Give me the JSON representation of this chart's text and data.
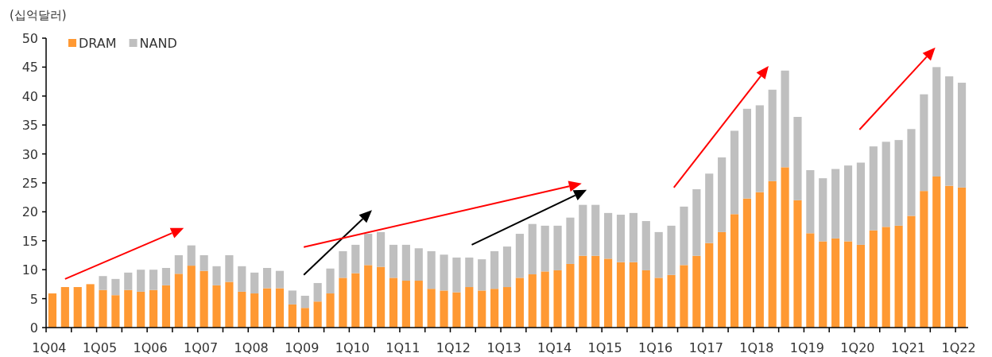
{
  "chart_data": {
    "type": "bar",
    "stacked": true,
    "ylabel": "(십억달러)",
    "legend": "top left",
    "grid": false,
    "categories": [
      "1Q04",
      null,
      null,
      null,
      "1Q05",
      null,
      null,
      null,
      "1Q06",
      null,
      null,
      null,
      "1Q07",
      null,
      null,
      null,
      "1Q08",
      null,
      null,
      null,
      "1Q09",
      null,
      null,
      null,
      "1Q10",
      null,
      null,
      null,
      "1Q11",
      null,
      null,
      null,
      "1Q12",
      null,
      null,
      null,
      "1Q13",
      null,
      null,
      null,
      "1Q14",
      null,
      null,
      null,
      "1Q15",
      null,
      null,
      null,
      "1Q16",
      null,
      null,
      null,
      "1Q17",
      null,
      null,
      null,
      "1Q18",
      null,
      null,
      null,
      "1Q19",
      null,
      null,
      null,
      "1Q20",
      null,
      null,
      null,
      "1Q21",
      null,
      null,
      null,
      "1Q22"
    ],
    "ylim": [
      0,
      50
    ],
    "yticks": [
      0,
      5,
      10,
      15,
      20,
      25,
      30,
      35,
      40,
      45,
      50
    ],
    "series": [
      {
        "name": "DRAM",
        "color": "#ff9933",
        "values": [
          5.9,
          7.0,
          7.0,
          7.5,
          6.5,
          5.6,
          6.5,
          6.2,
          6.5,
          7.3,
          9.3,
          10.7,
          9.8,
          7.3,
          7.9,
          6.2,
          5.9,
          6.8,
          6.8,
          4.0,
          3.4,
          4.5,
          5.9,
          8.6,
          9.4,
          10.8,
          10.5,
          8.6,
          8.1,
          8.1,
          6.7,
          6.4,
          6.1,
          7.0,
          6.4,
          6.7,
          7.0,
          8.6,
          9.2,
          9.7,
          9.9,
          11.0,
          12.4,
          12.4,
          11.9,
          11.3,
          11.3,
          9.9,
          8.6,
          9.1,
          10.8,
          12.4,
          14.6,
          16.5,
          19.6,
          22.3,
          23.4,
          25.3,
          27.7,
          22.0,
          16.3,
          14.9,
          15.4,
          14.9,
          14.3,
          16.8,
          17.4,
          17.6,
          19.3,
          23.6,
          26.1,
          24.5,
          24.2
        ]
      },
      {
        "name": "NAND",
        "color": "#bfbfbf",
        "values": [
          0,
          0,
          0,
          0,
          2.4,
          2.8,
          3.0,
          3.8,
          3.5,
          3.0,
          3.2,
          3.5,
          2.7,
          3.3,
          4.6,
          4.4,
          3.6,
          3.5,
          3.0,
          2.4,
          2.1,
          3.2,
          4.3,
          4.6,
          4.9,
          5.4,
          6.0,
          5.7,
          6.2,
          5.6,
          6.5,
          6.2,
          6.0,
          5.1,
          5.4,
          6.5,
          7.0,
          7.6,
          8.7,
          7.9,
          7.7,
          8.0,
          8.8,
          8.8,
          7.9,
          8.2,
          8.5,
          8.5,
          7.9,
          8.5,
          10.1,
          11.5,
          12.0,
          12.9,
          14.4,
          15.5,
          15.0,
          15.8,
          16.7,
          14.4,
          10.9,
          10.9,
          12.0,
          13.1,
          14.2,
          14.5,
          14.7,
          14.8,
          15.0,
          16.7,
          18.9,
          18.9,
          18.1
        ]
      }
    ]
  }
}
